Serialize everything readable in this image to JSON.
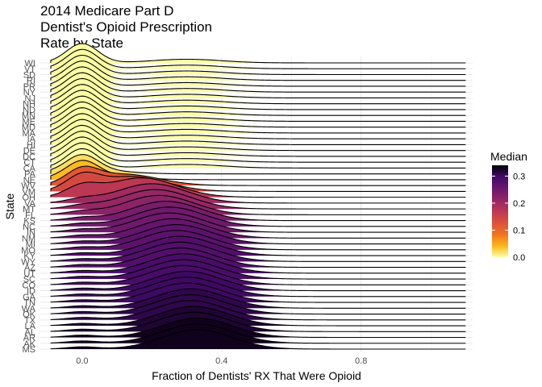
{
  "chart_data": {
    "type": "ridgeline",
    "title_lines": [
      "2014 Medicare Part D",
      "Dentist's Opioid Prescription",
      "Rate by State"
    ],
    "xlabel": "Fraction of Dentists' RX That Were Opioid",
    "ylabel": "State",
    "x_ticks": [
      "0.0",
      "0.4",
      "0.8"
    ],
    "xlim": [
      -0.12,
      1.12
    ],
    "grid": true,
    "legend": {
      "title": "Median",
      "position": "right",
      "ticks": [
        "0.0",
        "0.1",
        "0.2",
        "0.3"
      ],
      "range": [
        0,
        0.34
      ]
    },
    "states": [
      "WI",
      "VT",
      "SD",
      "RI",
      "PR",
      "NY",
      "NJ",
      "NH",
      "ND",
      "MN",
      "ME",
      "MD",
      "MA",
      "IA",
      "HI",
      "DE",
      "DC",
      "CT",
      "CA",
      "PA",
      "NE",
      "WV",
      "VM",
      "OH",
      "VA",
      "MT",
      "FL",
      "KS",
      "NC",
      "IN",
      "NM",
      "MI",
      "MO",
      "KY",
      "WY",
      "AZ",
      "UT",
      "SC",
      "CO",
      "ID",
      "GA",
      "TN",
      "WA",
      "OK",
      "TX",
      "LA",
      "AL",
      "AR",
      "AK",
      "MS"
    ],
    "medians": [
      0.0,
      0.0,
      0.0,
      0.0,
      0.0,
      0.0,
      0.0,
      0.0,
      0.0,
      0.0,
      0.0,
      0.0,
      0.0,
      0.0,
      0.0,
      0.0,
      0.0,
      0.0,
      0.0,
      0.02,
      0.04,
      0.12,
      0.14,
      0.17,
      0.2,
      0.21,
      0.22,
      0.24,
      0.25,
      0.25,
      0.26,
      0.27,
      0.27,
      0.28,
      0.28,
      0.28,
      0.29,
      0.29,
      0.29,
      0.3,
      0.3,
      0.3,
      0.31,
      0.31,
      0.31,
      0.32,
      0.32,
      0.33,
      0.33,
      0.33
    ]
  },
  "colors": {
    "scale": [
      "#fcffa4",
      "#fcb519",
      "#f1731d",
      "#dd513a",
      "#bc3754",
      "#932667",
      "#6a176e",
      "#420a68",
      "#000004"
    ],
    "gridline": "#ebebeb",
    "outline": "#000000"
  }
}
